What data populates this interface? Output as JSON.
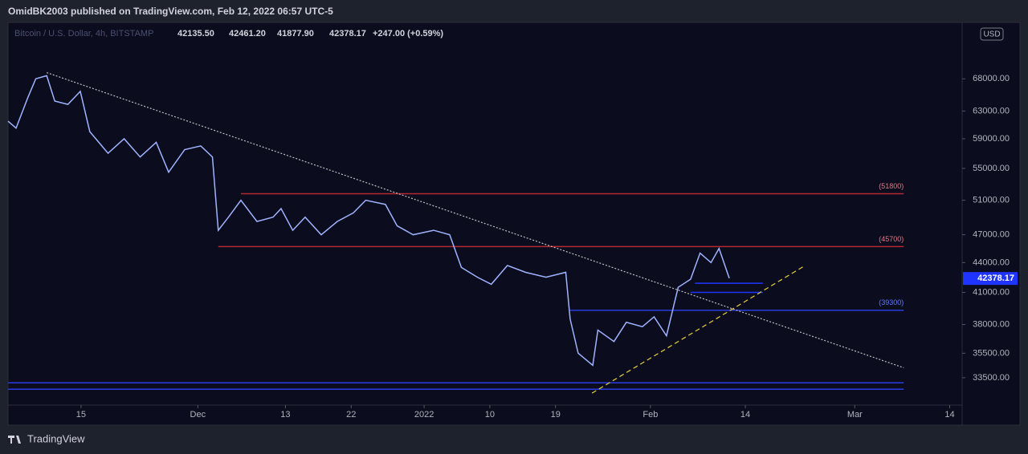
{
  "header": {
    "publisher": "OmidBK2003 published on TradingView.com, Feb 12, 2022 06:57 UTC-5",
    "footer": "TradingView"
  },
  "chart_data": {
    "type": "line",
    "title": "Bitcoin / U.S. Dollar, 4h, BITSTAMP",
    "ohlc": {
      "open": {
        "value": 42135.5,
        "label": "42135.50"
      },
      "high": {
        "value": 42461.2,
        "label": "42461.20"
      },
      "low": {
        "value": 41877.9,
        "label": "41877.90"
      },
      "close": {
        "value": 42378.17,
        "label": "42378.17"
      },
      "change": "+247.00 (+0.59%)"
    },
    "currency": "USD",
    "log_scale": true,
    "xlim": [
      -10,
      120.7
    ],
    "ylim": [
      31400,
      77700
    ],
    "xticks": [
      {
        "value": 0,
        "label": "15"
      },
      {
        "value": 16,
        "label": "Dec"
      },
      {
        "value": 28,
        "label": "13"
      },
      {
        "value": 37,
        "label": "22"
      },
      {
        "value": 47,
        "label": "2022"
      },
      {
        "value": 56,
        "label": "10"
      },
      {
        "value": 65,
        "label": "19"
      },
      {
        "value": 78,
        "label": "Feb"
      },
      {
        "value": 91,
        "label": "14"
      },
      {
        "value": 106,
        "label": "Mar"
      },
      {
        "value": 119,
        "label": "14"
      }
    ],
    "yticks": [
      {
        "value": 68000,
        "label": "68000.00"
      },
      {
        "value": 63000,
        "label": "63000.00"
      },
      {
        "value": 59000,
        "label": "59000.00"
      },
      {
        "value": 55000,
        "label": "55000.00"
      },
      {
        "value": 51000,
        "label": "51000.00"
      },
      {
        "value": 47000,
        "label": "47000.00"
      },
      {
        "value": 44000,
        "label": "44000.00"
      },
      {
        "value": 41000,
        "label": "41000.00"
      },
      {
        "value": 38000,
        "label": "38000.00"
      },
      {
        "value": 35500,
        "label": "35500.00"
      },
      {
        "value": 33500,
        "label": "33500.00"
      }
    ],
    "series": [
      {
        "name": "BTCUSD",
        "color": "#9fb3ff",
        "x": [
          -10,
          -8.9,
          -7.3,
          -6.2,
          -4.7,
          -3.6,
          -1.8,
          -0.1,
          1.2,
          3.7,
          5.9,
          8.1,
          10.3,
          12,
          14.2,
          16.4,
          18,
          18.8,
          20.2,
          21.9,
          24.1,
          26.3,
          27.4,
          29,
          30.7,
          32.9,
          35.1,
          37.3,
          39,
          41.7,
          43.3,
          45.5,
          48.3,
          50.5,
          52.1,
          54.3,
          56.2,
          58.4,
          60.9,
          63.7,
          66.4,
          67,
          68.1,
          70.1,
          70.8,
          73,
          74.7,
          76.9,
          78.5,
          80.2,
          81.8,
          83.5,
          84.8,
          86.3,
          87.4,
          88.8
        ],
        "values": [
          61500,
          60500,
          65000,
          68000,
          68500,
          64500,
          64000,
          66000,
          60000,
          57000,
          59000,
          56500,
          58500,
          54500,
          57500,
          58000,
          56500,
          47500,
          49000,
          51000,
          48500,
          49000,
          50000,
          47500,
          49000,
          47000,
          48500,
          49500,
          51000,
          50500,
          48000,
          47000,
          47500,
          47000,
          43500,
          42500,
          41800,
          43700,
          43000,
          42500,
          43000,
          38500,
          35500,
          34500,
          37500,
          36500,
          38200,
          37800,
          38700,
          37000,
          41500,
          42300,
          45000,
          44000,
          45500,
          42400
        ]
      }
    ],
    "levels": [
      {
        "value": 51800,
        "label": "(51800)",
        "color": "#b22833",
        "x": [
          21.9,
          112.7
        ]
      },
      {
        "value": 45700,
        "label": "(45700)",
        "color": "#b22833",
        "x": [
          18.8,
          112.7
        ]
      },
      {
        "value": 39300,
        "label": "(39300)",
        "color": "#2c3ce0",
        "x": [
          67,
          112.7
        ]
      },
      {
        "value": 33100,
        "color": "#2c3ce0",
        "x": [
          -10,
          112.7
        ]
      },
      {
        "value": 32600,
        "color": "#2c3ce0",
        "x": [
          -10,
          112.7
        ]
      },
      {
        "value": 41900,
        "color": "#1f35ff",
        "x": [
          84.1,
          93.4
        ]
      },
      {
        "value": 41000,
        "color": "#1f35ff",
        "x": [
          83.5,
          93.4
        ]
      }
    ],
    "trendlines": [
      {
        "color": "#c0c0c0",
        "x": [
          -4.7,
          112.7
        ],
        "values": [
          69000,
          34300
        ]
      },
      {
        "color": "#e6d23a",
        "x": [
          70,
          99.2
        ],
        "values": [
          32300,
          43700
        ]
      }
    ]
  }
}
